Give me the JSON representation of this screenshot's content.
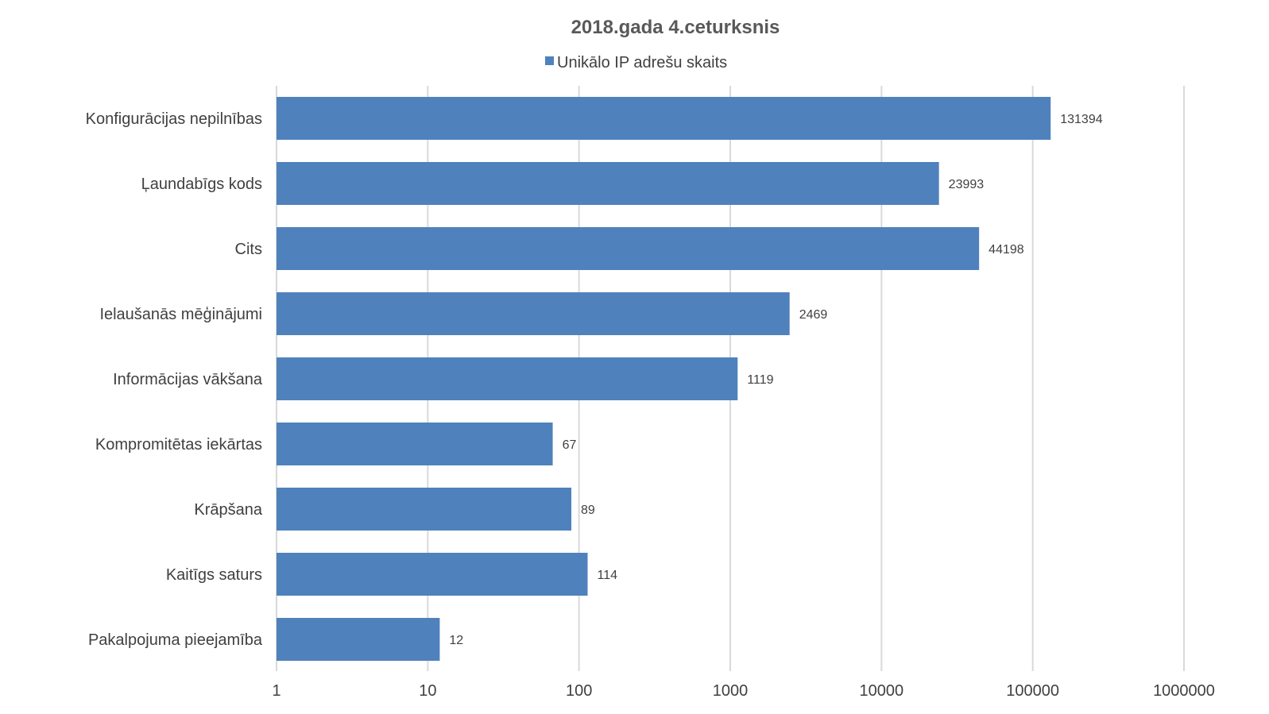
{
  "chart_data": {
    "type": "bar",
    "orientation": "horizontal",
    "title": "2018.gada 4.ceturksnis",
    "legend": {
      "position": "top",
      "entries": [
        "Unikālo IP adrešu skaits"
      ]
    },
    "x_scale": "log",
    "xlim": [
      1,
      1000000
    ],
    "x_ticks": [
      "1",
      "10",
      "100",
      "1000",
      "10000",
      "100000",
      "1000000"
    ],
    "grid": true,
    "bar_color": "#4f81bd",
    "categories": [
      "Konfigurācijas nepilnības",
      "Ļaundabīgs kods",
      "Cits",
      "Ielaušanās mēģinājumi",
      "Informācijas vākšana",
      "Kompromitētas iekārtas",
      "Krāpšana",
      "Kaitīgs saturs",
      "Pakalpojuma pieejamība"
    ],
    "series": [
      {
        "name": "Unikālo IP adrešu skaits",
        "values": [
          131394,
          23993,
          44198,
          2469,
          1119,
          67,
          89,
          114,
          12
        ],
        "data_labels": [
          "131394",
          "23993",
          "44198",
          "2469",
          "1119",
          "67",
          "89",
          "114",
          "12"
        ]
      }
    ]
  }
}
